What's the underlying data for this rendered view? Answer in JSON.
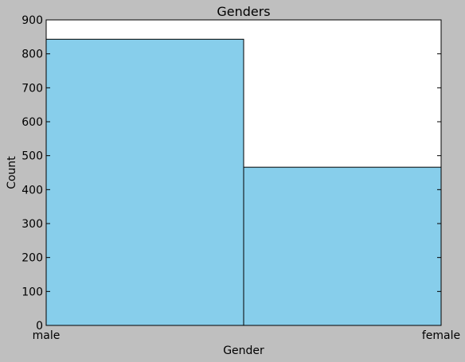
{
  "chart_data": {
    "type": "bar",
    "title": "Genders",
    "xlabel": "Gender",
    "ylabel": "Count",
    "categories": [
      "male",
      "female"
    ],
    "values": [
      843,
      466
    ],
    "ylim": [
      0,
      900
    ],
    "yticks": [
      0,
      100,
      200,
      300,
      400,
      500,
      600,
      700,
      800,
      900
    ],
    "grid": false,
    "legend": "none",
    "colors": {
      "figure_background": "#bfbfbf",
      "plot_background": "#ffffff",
      "bar_fill": "#87ceeb",
      "bar_edge": "#000000",
      "axis": "#000000"
    }
  }
}
